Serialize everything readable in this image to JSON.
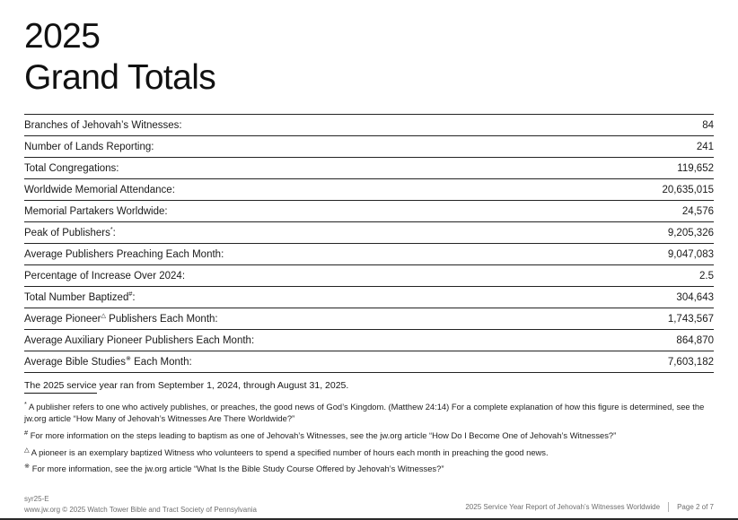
{
  "header": {
    "year": "2025",
    "title": "Grand Totals"
  },
  "stats_table": {
    "rows": [
      {
        "pre": "Branches of Jehovah’s Witnesses",
        "marker": "",
        "post": ":",
        "value": "84"
      },
      {
        "pre": "Number of Lands Reporting",
        "marker": "",
        "post": ":",
        "value": "241"
      },
      {
        "pre": "Total Congregations",
        "marker": "",
        "post": ":",
        "value": "119,652"
      },
      {
        "pre": "Worldwide Memorial Attendance",
        "marker": "",
        "post": ":",
        "value": "20,635,015"
      },
      {
        "pre": "Memorial Partakers Worldwide",
        "marker": "",
        "post": ":",
        "value": "24,576"
      },
      {
        "pre": "Peak of Publishers",
        "marker": "*",
        "post": ":",
        "value": "9,205,326"
      },
      {
        "pre": "Average Publishers Preaching Each Month",
        "marker": "",
        "post": ":",
        "value": "9,047,083"
      },
      {
        "pre": "Percentage of Increase Over 2024",
        "marker": "",
        "post": ":",
        "value": "2.5"
      },
      {
        "pre": "Total Number Baptized",
        "marker": "#",
        "post": ":",
        "value": "304,643"
      },
      {
        "pre": "Average Pioneer",
        "marker": "△",
        "post": " Publishers Each Month:",
        "value": "1,743,567"
      },
      {
        "pre": "Average Auxiliary Pioneer Publishers Each Month",
        "marker": "",
        "post": ":",
        "value": "864,870"
      },
      {
        "pre": "Average Bible Studies",
        "marker": "※",
        "post": " Each Month:",
        "value": "7,603,182"
      }
    ]
  },
  "dateline": {
    "underlined": "The 2025 service",
    "rest": " year ran from September 1, 2024, through August 31, 2025."
  },
  "footnotes": [
    {
      "marker": "*",
      "text": "A publisher refers to one who actively publishes, or preaches, the good news of God’s Kingdom. (Matthew 24:14) For a complete explanation of how this figure is determined, see the jw.org article “How Many of Jehovah’s Witnesses Are There Worldwide?”"
    },
    {
      "marker": "#",
      "text": "For more information on the steps leading to baptism as one of Jehovah’s Witnesses, see the jw.org article “How Do I Become One of Jehovah’s Witnesses?”"
    },
    {
      "marker": "△",
      "text": "A pioneer is an exemplary baptized Witness who volunteers to spend a specified number of hours each month in preaching the good news."
    },
    {
      "marker": "※",
      "text": "For more information, see the jw.org article “What Is the Bible Study Course Offered by Jehovah’s Witnesses?”"
    }
  ],
  "footer": {
    "doc_code": "syr25-E",
    "copyright": "www.jw.org © 2025 Watch Tower Bible and Tract Society of Pennsylvania",
    "report_title": "2025 Service Year Report of Jehovah’s Witnesses Worldwide",
    "page_indicator": "Page 2 of 7"
  }
}
